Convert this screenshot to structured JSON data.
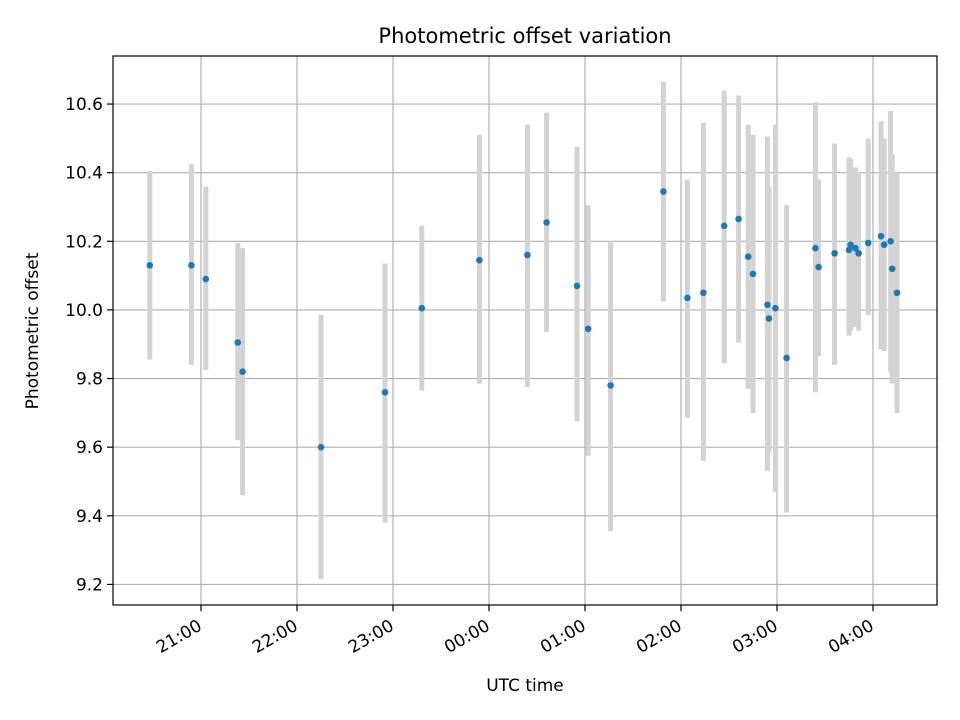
{
  "chart_data": {
    "type": "scatter",
    "title": "Photometric offset variation",
    "xlabel": "UTC time",
    "ylabel": "Photometric offset",
    "xlim": [
      "20:05",
      "04:40"
    ],
    "ylim": [
      9.14,
      10.74
    ],
    "x_ticks": [
      "21:00",
      "22:00",
      "23:00",
      "00:00",
      "01:00",
      "02:00",
      "03:00",
      "04:00"
    ],
    "y_ticks": [
      9.2,
      9.4,
      9.6,
      9.8,
      10.0,
      10.2,
      10.4,
      10.6
    ],
    "grid": true,
    "point_color": "#1f77b4",
    "errorbar_color": "#d3d3d3",
    "points": [
      {
        "x": "20:28",
        "y": 10.13,
        "lo": 9.855,
        "hi": 10.405
      },
      {
        "x": "20:54",
        "y": 10.13,
        "lo": 9.84,
        "hi": 10.425
      },
      {
        "x": "21:03",
        "y": 10.09,
        "lo": 9.825,
        "hi": 10.36
      },
      {
        "x": "21:23",
        "y": 9.905,
        "lo": 9.62,
        "hi": 10.195
      },
      {
        "x": "21:26",
        "y": 9.82,
        "lo": 9.46,
        "hi": 10.18
      },
      {
        "x": "22:15",
        "y": 9.6,
        "lo": 9.215,
        "hi": 9.985
      },
      {
        "x": "22:55",
        "y": 9.76,
        "lo": 9.38,
        "hi": 10.135
      },
      {
        "x": "23:18",
        "y": 10.005,
        "lo": 9.765,
        "hi": 10.245
      },
      {
        "x": "23:54",
        "y": 10.145,
        "lo": 9.785,
        "hi": 10.51
      },
      {
        "x": "00:24",
        "y": 10.16,
        "lo": 9.775,
        "hi": 10.54
      },
      {
        "x": "00:36",
        "y": 10.255,
        "lo": 9.935,
        "hi": 10.575
      },
      {
        "x": "00:55",
        "y": 10.07,
        "lo": 9.675,
        "hi": 10.475
      },
      {
        "x": "01:02",
        "y": 9.945,
        "lo": 9.575,
        "hi": 10.305
      },
      {
        "x": "01:16",
        "y": 9.78,
        "lo": 9.355,
        "hi": 10.2
      },
      {
        "x": "01:49",
        "y": 10.345,
        "lo": 10.025,
        "hi": 10.665
      },
      {
        "x": "02:04",
        "y": 10.035,
        "lo": 9.685,
        "hi": 10.38
      },
      {
        "x": "02:14",
        "y": 10.05,
        "lo": 9.56,
        "hi": 10.545
      },
      {
        "x": "02:27",
        "y": 10.245,
        "lo": 9.845,
        "hi": 10.64
      },
      {
        "x": "02:36",
        "y": 10.265,
        "lo": 9.905,
        "hi": 10.625
      },
      {
        "x": "02:42",
        "y": 10.155,
        "lo": 9.77,
        "hi": 10.54
      },
      {
        "x": "02:45",
        "y": 10.105,
        "lo": 9.7,
        "hi": 10.51
      },
      {
        "x": "02:54",
        "y": 10.015,
        "lo": 9.53,
        "hi": 10.505
      },
      {
        "x": "02:55",
        "y": 9.975,
        "lo": 9.585,
        "hi": 10.36
      },
      {
        "x": "02:59",
        "y": 10.005,
        "lo": 9.47,
        "hi": 10.54
      },
      {
        "x": "03:06",
        "y": 9.86,
        "lo": 9.41,
        "hi": 10.305
      },
      {
        "x": "03:24",
        "y": 10.18,
        "lo": 9.76,
        "hi": 10.605
      },
      {
        "x": "03:26",
        "y": 10.125,
        "lo": 9.865,
        "hi": 10.38
      },
      {
        "x": "03:36",
        "y": 10.165,
        "lo": 9.84,
        "hi": 10.485
      },
      {
        "x": "03:45",
        "y": 10.175,
        "lo": 9.925,
        "hi": 10.445
      },
      {
        "x": "03:46",
        "y": 10.19,
        "lo": 9.94,
        "hi": 10.44
      },
      {
        "x": "03:49",
        "y": 10.18,
        "lo": 9.95,
        "hi": 10.415
      },
      {
        "x": "03:51",
        "y": 10.165,
        "lo": 9.94,
        "hi": 10.4
      },
      {
        "x": "03:57",
        "y": 10.195,
        "lo": 9.985,
        "hi": 10.5
      },
      {
        "x": "04:05",
        "y": 10.215,
        "lo": 9.885,
        "hi": 10.55
      },
      {
        "x": "04:07",
        "y": 10.19,
        "lo": 9.88,
        "hi": 10.5
      },
      {
        "x": "04:11",
        "y": 10.2,
        "lo": 9.82,
        "hi": 10.58
      },
      {
        "x": "04:12",
        "y": 10.12,
        "lo": 9.785,
        "hi": 10.455
      },
      {
        "x": "04:15",
        "y": 10.05,
        "lo": 9.7,
        "hi": 10.4
      }
    ]
  }
}
